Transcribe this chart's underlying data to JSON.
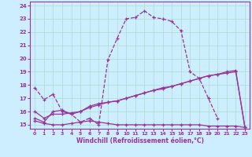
{
  "background_color": "#cceeff",
  "grid_color": "#aaddcc",
  "line_color": "#993399",
  "xlabel": "Windchill (Refroidissement éolien,°C)",
  "xlim": [
    -0.5,
    23.5
  ],
  "ylim": [
    14.7,
    24.3
  ],
  "yticks": [
    15,
    16,
    17,
    18,
    19,
    20,
    21,
    22,
    23,
    24
  ],
  "xticks": [
    0,
    1,
    2,
    3,
    4,
    5,
    6,
    7,
    8,
    9,
    10,
    11,
    12,
    13,
    14,
    15,
    16,
    17,
    18,
    19,
    20,
    21,
    22,
    23
  ],
  "line1_x": [
    0,
    1,
    2,
    3,
    4,
    5,
    6,
    7,
    8,
    9,
    10,
    11,
    12,
    13,
    14,
    15,
    16,
    17,
    18,
    19,
    20
  ],
  "line1_y": [
    17.8,
    16.9,
    17.3,
    16.0,
    15.8,
    15.2,
    15.5,
    15.0,
    19.9,
    21.5,
    23.0,
    23.1,
    23.6,
    23.1,
    23.0,
    22.8,
    22.1,
    19.0,
    18.5,
    17.0,
    15.5
  ],
  "line2_x": [
    0,
    1,
    2,
    3,
    4,
    5,
    6,
    7,
    8,
    9,
    10,
    11,
    12,
    13,
    14,
    15,
    16,
    17,
    18,
    19,
    20,
    21,
    22,
    23
  ],
  "line2_y": [
    15.5,
    15.2,
    16.0,
    16.1,
    15.8,
    16.0,
    16.4,
    16.6,
    16.7,
    16.8,
    17.0,
    17.2,
    17.4,
    17.6,
    17.8,
    17.9,
    18.1,
    18.3,
    18.5,
    18.7,
    18.8,
    18.9,
    19.0,
    14.8
  ],
  "line3_x": [
    0,
    1,
    2,
    3,
    4,
    5,
    6,
    7,
    8,
    9,
    10,
    11,
    12,
    13,
    14,
    15,
    16,
    17,
    18,
    19,
    20,
    21,
    22,
    23
  ],
  "line3_y": [
    16.0,
    15.5,
    15.8,
    15.8,
    15.9,
    16.0,
    16.3,
    16.5,
    16.7,
    16.8,
    17.0,
    17.2,
    17.4,
    17.6,
    17.7,
    17.9,
    18.1,
    18.3,
    18.5,
    18.7,
    18.8,
    19.0,
    19.1,
    14.8
  ],
  "line4_x": [
    0,
    1,
    2,
    3,
    4,
    5,
    6,
    7,
    8,
    9,
    10,
    11,
    12,
    13,
    14,
    15,
    16,
    17,
    18,
    19,
    20,
    21,
    22,
    23
  ],
  "line4_y": [
    15.3,
    15.1,
    15.0,
    15.0,
    15.1,
    15.2,
    15.3,
    15.2,
    15.1,
    15.0,
    15.0,
    15.0,
    15.0,
    15.0,
    15.0,
    15.0,
    15.0,
    15.0,
    15.0,
    14.9,
    14.9,
    14.9,
    14.9,
    14.8
  ]
}
